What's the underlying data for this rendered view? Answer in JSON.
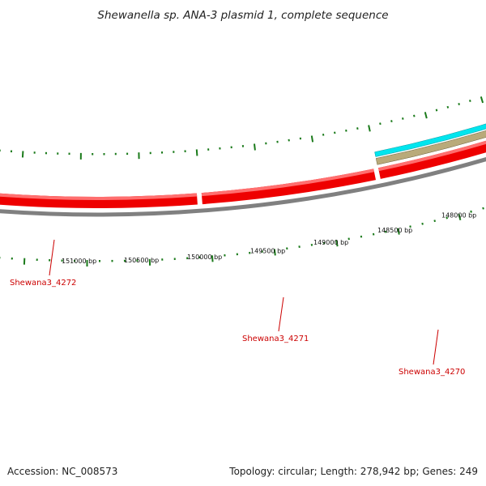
{
  "title": "Shewanella sp. ANA-3 plasmid 1, complete sequence",
  "footer": {
    "accession": "Accession: NC_008573",
    "summary": "Topology: circular; Length: 278,942 bp; Genes: 249"
  },
  "colors": {
    "background": "#ffffff",
    "backbone": "#808080",
    "gene_forward": "#ee0000",
    "gene_forward_light": "#ff6f6f",
    "gene_tan": "#b9aa7a",
    "gene_cyan": "#00e5ee",
    "tick": "#1a7a1a",
    "gene_label": "#cc0000"
  },
  "scale": {
    "unit": "bp",
    "labels": [
      {
        "position": 151000,
        "text": "151000 bp"
      },
      {
        "position": 150500,
        "text": "150500 bp"
      },
      {
        "position": 150000,
        "text": "150000 bp"
      },
      {
        "position": 149500,
        "text": "149500 bp"
      },
      {
        "position": 149000,
        "text": "149000 bp"
      },
      {
        "position": 148500,
        "text": "148500 bp"
      },
      {
        "position": 148000,
        "text": "148000 bp"
      }
    ]
  },
  "genes": [
    {
      "label": "Shewana3_4272",
      "strand": "forward",
      "color_key": "gene_forward"
    },
    {
      "label": "Shewana3_4271",
      "strand": "forward",
      "color_key": "gene_forward"
    },
    {
      "label": "Shewana3_4270",
      "strand": "forward",
      "color_key": "gene_forward"
    }
  ]
}
